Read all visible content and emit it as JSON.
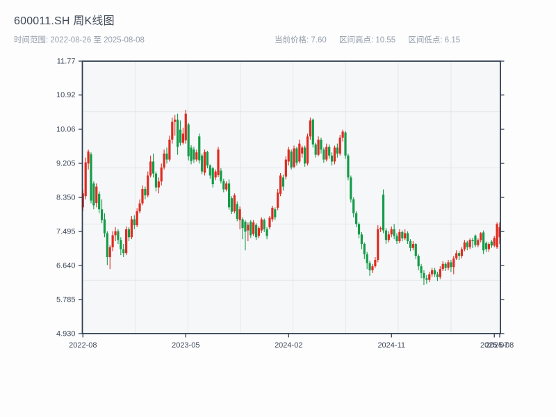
{
  "header": {
    "title": "600011.SH 周K线图",
    "time_range_label": "时间范围: 2022-08-26 至 2025-08-08",
    "stats": [
      {
        "label": "当前价格",
        "value": "7.60",
        "text": "当前价格: 7.60"
      },
      {
        "label": "区间高点",
        "value": "10.55",
        "text": "区间高点: 10.55"
      },
      {
        "label": "区间低点",
        "value": "6.15",
        "text": "区间低点: 6.15"
      }
    ]
  },
  "chart_data": {
    "type": "candlestick",
    "symbol": "600011.SH",
    "interval": "weekly",
    "start_date": "2022-08-26",
    "end_date": "2025-08-08",
    "current_price": 7.6,
    "range_high": 10.55,
    "range_low": 6.15,
    "ylim": [
      4.93,
      11.77
    ],
    "y_axis": {
      "labels": [
        "11.77",
        "10.92",
        "10.06",
        "9.205",
        "8.350",
        "7.495",
        "6.640",
        "5.785",
        "4.930"
      ],
      "values": [
        11.77,
        10.92,
        10.06,
        9.205,
        8.35,
        7.495,
        6.64,
        5.785,
        4.93
      ]
    },
    "x_axis": {
      "ticks": [
        {
          "label": "2022-08",
          "index": 0
        },
        {
          "label": "2023-05",
          "index": 38
        },
        {
          "label": "2024-02",
          "index": 76
        },
        {
          "label": "2024-11",
          "index": 114
        },
        {
          "label": "2025-07",
          "index": 152
        },
        {
          "label": "2025-08",
          "index": 154
        }
      ]
    },
    "grid": {
      "h_values": [
        6.27,
        7.68,
        9.09,
        10.5
      ],
      "v_indices": [
        19.3,
        38.8,
        58.2,
        77.6,
        97.1,
        116.5,
        136.0
      ]
    },
    "colors": {
      "up": "#df2b20",
      "down": "#149b48",
      "spine": "#2f3d52",
      "grid": "#e4e7ea",
      "plot_bg": "#f6f7f9",
      "fig_bg": "#fdfdfe",
      "tick_label": "#3b4656",
      "title": "#414b58",
      "subtitle": "#939eaa"
    },
    "ohlc": [
      [
        8.1,
        8.55,
        8.0,
        8.45
      ],
      [
        8.38,
        9.35,
        8.3,
        9.23
      ],
      [
        9.2,
        9.55,
        9.05,
        9.5
      ],
      [
        9.43,
        9.48,
        8.2,
        8.27
      ],
      [
        8.7,
        8.75,
        8.05,
        8.15
      ],
      [
        8.21,
        8.7,
        8.1,
        8.62
      ],
      [
        8.44,
        8.5,
        7.95,
        8.05
      ],
      [
        8.05,
        8.3,
        7.7,
        7.78
      ],
      [
        7.8,
        7.95,
        7.35,
        7.45
      ],
      [
        7.45,
        7.5,
        6.65,
        6.85
      ],
      [
        6.85,
        7.15,
        6.55,
        7.1
      ],
      [
        7.1,
        7.5,
        7.0,
        7.4
      ],
      [
        7.4,
        7.6,
        7.25,
        7.5
      ],
      [
        7.5,
        7.55,
        7.18,
        7.28
      ],
      [
        7.28,
        7.35,
        6.9,
        7.05
      ],
      [
        7.05,
        7.18,
        6.85,
        6.95
      ],
      [
        6.95,
        7.62,
        6.9,
        7.55
      ],
      [
        7.55,
        7.6,
        7.25,
        7.35
      ],
      [
        7.35,
        7.88,
        7.3,
        7.8
      ],
      [
        7.8,
        7.9,
        7.55,
        7.65
      ],
      [
        7.65,
        8.08,
        7.6,
        8.0
      ],
      [
        8.0,
        8.3,
        7.95,
        8.2
      ],
      [
        8.2,
        8.65,
        8.15,
        8.56
      ],
      [
        8.56,
        8.62,
        8.3,
        8.4
      ],
      [
        8.4,
        9.0,
        8.35,
        8.9
      ],
      [
        8.9,
        9.4,
        8.85,
        9.25
      ],
      [
        9.25,
        9.45,
        8.85,
        8.95
      ],
      [
        8.95,
        9.0,
        8.5,
        8.6
      ],
      [
        8.6,
        8.85,
        8.45,
        8.75
      ],
      [
        8.75,
        9.2,
        8.65,
        9.1
      ],
      [
        9.1,
        9.55,
        9.05,
        9.45
      ],
      [
        9.45,
        9.6,
        9.2,
        9.3
      ],
      [
        9.3,
        9.9,
        9.25,
        9.8
      ],
      [
        9.8,
        10.35,
        9.7,
        10.25
      ],
      [
        10.25,
        10.42,
        9.9,
        10.3
      ],
      [
        10.3,
        10.45,
        9.42,
        9.62
      ],
      [
        10.05,
        10.28,
        9.65,
        9.72
      ],
      [
        9.72,
        10.1,
        9.68,
        9.95
      ],
      [
        9.78,
        10.55,
        9.7,
        10.45
      ],
      [
        10.18,
        10.22,
        9.28,
        9.38
      ],
      [
        9.6,
        9.66,
        9.18,
        9.26
      ],
      [
        9.55,
        9.62,
        9.22,
        9.3
      ],
      [
        9.3,
        9.55,
        9.25,
        9.48
      ],
      [
        9.88,
        9.95,
        9.2,
        9.28
      ],
      [
        9.4,
        9.45,
        8.93,
        9.0
      ],
      [
        8.97,
        9.55,
        8.9,
        9.49
      ],
      [
        9.49,
        9.52,
        9.08,
        9.15
      ],
      [
        9.15,
        9.18,
        8.82,
        8.9
      ],
      [
        9.08,
        9.12,
        8.6,
        8.68
      ],
      [
        8.85,
        9.05,
        8.78,
        9.0
      ],
      [
        8.91,
        9.62,
        8.86,
        9.55
      ],
      [
        9.02,
        9.08,
        8.7,
        8.76
      ],
      [
        8.76,
        8.82,
        8.48,
        8.55
      ],
      [
        8.55,
        8.75,
        8.5,
        8.7
      ],
      [
        8.7,
        8.8,
        8.04,
        8.1
      ],
      [
        8.33,
        8.38,
        7.93,
        7.99
      ],
      [
        8.0,
        8.45,
        7.95,
        8.4
      ],
      [
        8.18,
        8.25,
        7.75,
        7.81
      ],
      [
        7.78,
        8.12,
        7.55,
        8.05
      ],
      [
        7.8,
        7.85,
        7.3,
        7.58
      ],
      [
        7.74,
        7.78,
        7.02,
        7.49
      ],
      [
        7.52,
        7.72,
        7.25,
        7.66
      ],
      [
        7.74,
        7.78,
        7.33,
        7.4
      ],
      [
        7.43,
        7.78,
        7.38,
        7.72
      ],
      [
        7.66,
        7.7,
        7.28,
        7.35
      ],
      [
        7.38,
        7.63,
        7.32,
        7.58
      ],
      [
        7.52,
        7.85,
        7.46,
        7.8
      ],
      [
        7.78,
        7.82,
        7.48,
        7.55
      ],
      [
        7.55,
        7.6,
        7.3,
        7.38
      ],
      [
        7.6,
        7.88,
        7.55,
        7.84
      ],
      [
        7.8,
        8.14,
        7.74,
        8.09
      ],
      [
        8.05,
        8.1,
        7.78,
        7.85
      ],
      [
        8.09,
        8.56,
        8.03,
        8.47
      ],
      [
        8.44,
        8.96,
        8.38,
        8.9
      ],
      [
        8.85,
        8.92,
        8.52,
        8.62
      ],
      [
        8.87,
        9.38,
        8.8,
        9.3
      ],
      [
        9.25,
        9.62,
        9.15,
        9.55
      ],
      [
        9.5,
        9.55,
        9.05,
        9.1
      ],
      [
        9.12,
        9.65,
        9.08,
        9.58
      ],
      [
        9.58,
        9.62,
        9.15,
        9.22
      ],
      [
        9.25,
        9.8,
        9.2,
        9.7
      ],
      [
        9.45,
        9.65,
        9.35,
        9.6
      ],
      [
        9.6,
        9.65,
        9.12,
        9.2
      ],
      [
        9.2,
        9.95,
        9.15,
        9.88
      ],
      [
        9.88,
        10.35,
        9.8,
        10.28
      ],
      [
        10.3,
        10.33,
        9.6,
        9.68
      ],
      [
        9.68,
        9.72,
        9.35,
        9.42
      ],
      [
        9.42,
        9.88,
        9.38,
        9.8
      ],
      [
        9.8,
        9.85,
        9.45,
        9.55
      ],
      [
        9.55,
        9.6,
        9.22,
        9.3
      ],
      [
        9.3,
        9.7,
        9.25,
        9.62
      ],
      [
        9.62,
        9.68,
        9.32,
        9.4
      ],
      [
        9.4,
        9.48,
        9.15,
        9.25
      ],
      [
        9.25,
        9.65,
        9.18,
        9.6
      ],
      [
        9.6,
        9.7,
        9.35,
        9.45
      ],
      [
        9.45,
        9.92,
        9.4,
        9.85
      ],
      [
        9.85,
        10.05,
        9.75,
        10.0
      ],
      [
        9.98,
        10.02,
        9.32,
        9.4
      ],
      [
        9.4,
        9.45,
        8.78,
        8.85
      ],
      [
        8.85,
        8.9,
        8.22,
        8.3
      ],
      [
        8.3,
        8.35,
        7.85,
        7.95
      ],
      [
        7.95,
        8.0,
        7.6,
        7.68
      ],
      [
        7.68,
        7.72,
        7.32,
        7.42
      ],
      [
        7.42,
        7.48,
        7.05,
        7.18
      ],
      [
        7.18,
        7.22,
        6.8,
        6.92
      ],
      [
        6.92,
        6.98,
        6.55,
        6.7
      ],
      [
        6.7,
        6.76,
        6.38,
        6.52
      ],
      [
        6.52,
        6.68,
        6.45,
        6.62
      ],
      [
        6.62,
        6.85,
        6.58,
        6.78
      ],
      [
        6.78,
        7.65,
        6.72,
        7.55
      ],
      [
        7.55,
        7.62,
        7.48,
        7.58
      ],
      [
        8.42,
        8.55,
        7.45,
        7.52
      ],
      [
        7.52,
        7.58,
        7.18,
        7.28
      ],
      [
        7.28,
        7.5,
        7.22,
        7.42
      ],
      [
        7.42,
        7.62,
        7.35,
        7.55
      ],
      [
        7.55,
        7.68,
        7.3,
        7.38
      ],
      [
        7.38,
        7.45,
        7.18,
        7.25
      ],
      [
        7.25,
        7.55,
        7.2,
        7.48
      ],
      [
        7.48,
        7.52,
        7.25,
        7.32
      ],
      [
        7.32,
        7.55,
        7.28,
        7.45
      ],
      [
        7.45,
        7.5,
        7.18,
        7.25
      ],
      [
        7.25,
        7.3,
        7.0,
        7.08
      ],
      [
        7.08,
        7.25,
        7.02,
        7.18
      ],
      [
        7.18,
        7.2,
        6.8,
        6.88
      ],
      [
        6.88,
        6.92,
        6.52,
        6.62
      ],
      [
        6.62,
        6.68,
        6.32,
        6.45
      ],
      [
        6.45,
        6.52,
        6.15,
        6.32
      ],
      [
        6.32,
        6.4,
        6.18,
        6.28
      ],
      [
        6.28,
        6.48,
        6.22,
        6.42
      ],
      [
        6.42,
        6.58,
        6.35,
        6.52
      ],
      [
        6.52,
        6.58,
        6.35,
        6.42
      ],
      [
        6.42,
        6.48,
        6.25,
        6.35
      ],
      [
        6.35,
        6.62,
        6.3,
        6.55
      ],
      [
        6.55,
        6.75,
        6.5,
        6.68
      ],
      [
        6.68,
        6.72,
        6.5,
        6.58
      ],
      [
        6.58,
        6.78,
        6.52,
        6.72
      ],
      [
        6.72,
        6.78,
        6.48,
        6.6
      ],
      [
        6.6,
        6.88,
        6.42,
        6.82
      ],
      [
        6.82,
        7.02,
        6.78,
        6.95
      ],
      [
        6.95,
        7.0,
        6.78,
        6.88
      ],
      [
        6.88,
        7.1,
        6.82,
        7.05
      ],
      [
        7.05,
        7.28,
        7.0,
        7.22
      ],
      [
        7.22,
        7.26,
        7.02,
        7.1
      ],
      [
        7.1,
        7.32,
        7.05,
        7.28
      ],
      [
        7.28,
        7.33,
        7.08,
        7.25
      ],
      [
        7.39,
        7.42,
        7.1,
        7.15
      ],
      [
        7.15,
        7.32,
        7.1,
        7.28
      ],
      [
        7.28,
        7.48,
        7.22,
        7.45
      ],
      [
        7.47,
        7.52,
        6.93,
        7.02
      ],
      [
        7.2,
        7.24,
        6.98,
        7.05
      ],
      [
        7.05,
        7.22,
        6.98,
        7.18
      ],
      [
        7.24,
        7.28,
        7.08,
        7.14
      ],
      [
        7.14,
        7.38,
        7.1,
        7.33
      ],
      [
        7.1,
        7.72,
        7.06,
        7.68
      ],
      [
        7.35,
        7.72,
        7.18,
        7.6
      ]
    ]
  }
}
